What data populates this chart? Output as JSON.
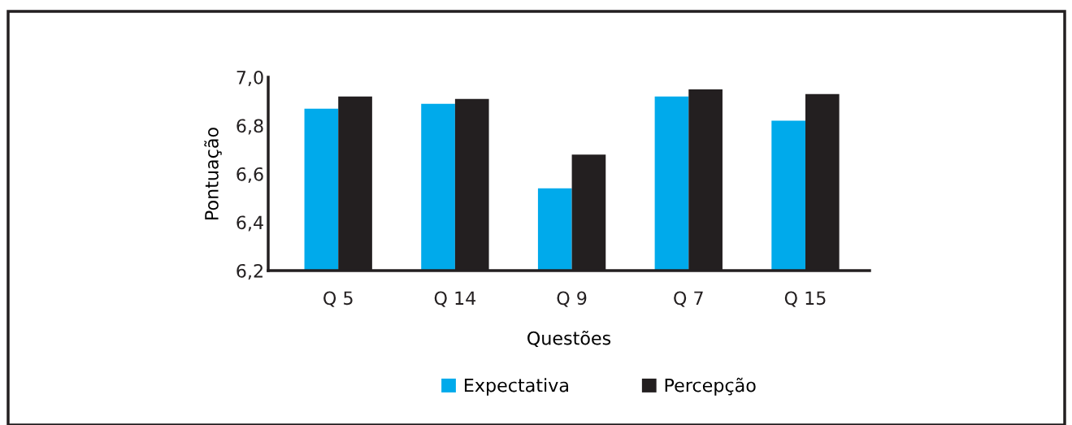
{
  "chart_data": {
    "type": "bar",
    "xlabel": "Questões",
    "ylabel": "Pontuação",
    "categories": [
      "Q 5",
      "Q 14",
      "Q 9",
      "Q 7",
      "Q 15"
    ],
    "series": [
      {
        "name": "Expectativa",
        "color": "#00aaeb",
        "values": [
          6.87,
          6.89,
          6.54,
          6.92,
          6.82
        ]
      },
      {
        "name": "Percepção",
        "color": "#231f20",
        "values": [
          6.92,
          6.91,
          6.68,
          6.95,
          6.93
        ]
      }
    ],
    "ylim": [
      6.2,
      7.0
    ],
    "yticks": [
      {
        "value": 6.2,
        "label": "6,2"
      },
      {
        "value": 6.4,
        "label": "6,4"
      },
      {
        "value": 6.6,
        "label": "6,6"
      },
      {
        "value": 6.8,
        "label": "6,8"
      },
      {
        "value": 7.0,
        "label": "7,0"
      }
    ],
    "grid": false,
    "legend": "bottom"
  }
}
